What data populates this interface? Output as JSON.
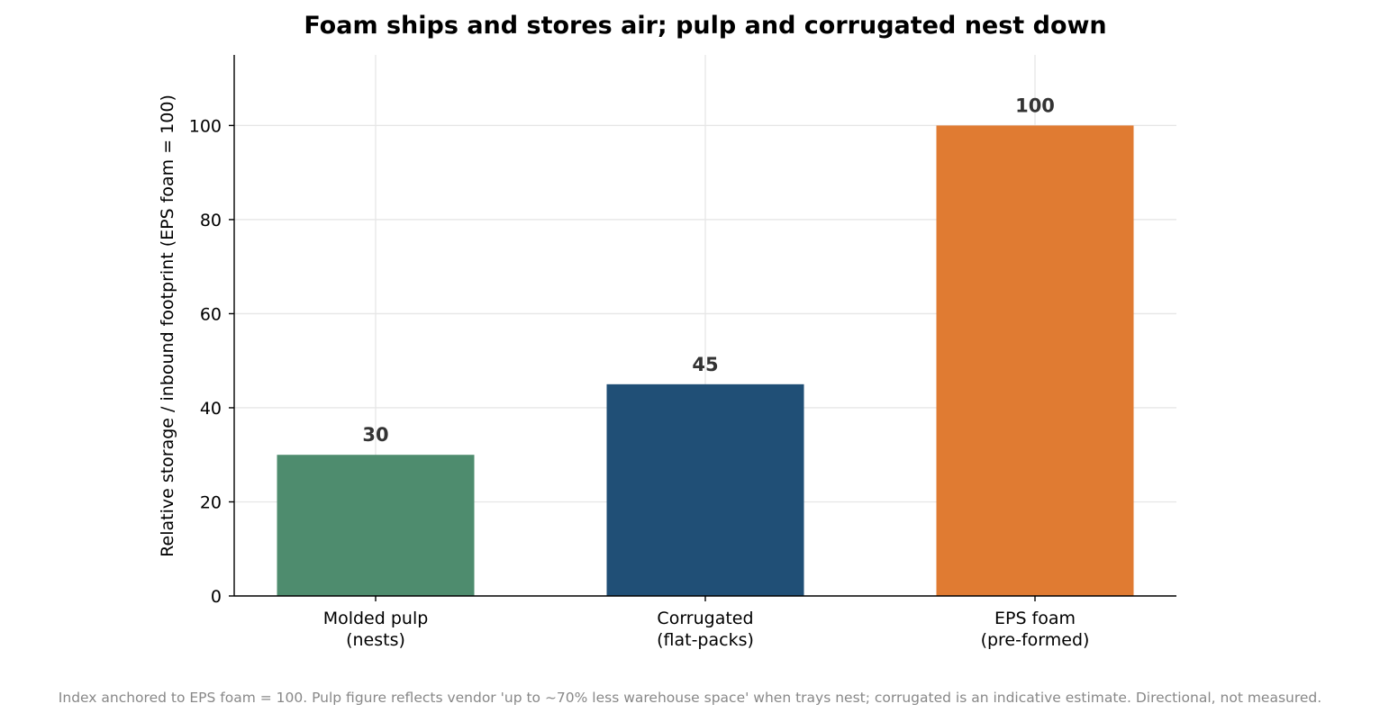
{
  "chart_data": {
    "type": "bar",
    "title": "Foam ships and stores air; pulp and corrugated nest down",
    "ylabel": "Relative storage / inbound footprint  (EPS foam = 100)",
    "xlabel": "",
    "ylim": [
      0,
      115
    ],
    "yticks": [
      0,
      20,
      40,
      60,
      80,
      100
    ],
    "ytick_labels": [
      "0",
      "20",
      "40",
      "60",
      "80",
      "100"
    ],
    "grid": true,
    "legend": "none",
    "categories": [
      [
        "Molded pulp",
        "(nests)"
      ],
      [
        "Corrugated",
        "(flat-packs)"
      ],
      [
        "EPS foam",
        "(pre-formed)"
      ]
    ],
    "values": [
      30,
      45,
      100
    ],
    "value_labels": [
      "30",
      "45",
      "100"
    ],
    "colors": [
      "#4e8c6e",
      "#204f76",
      "#e07b32"
    ],
    "footnote": "Index anchored to EPS foam = 100. Pulp figure reflects vendor 'up to ~70% less warehouse space' when trays nest; corrugated is an indicative estimate. Directional, not measured."
  }
}
